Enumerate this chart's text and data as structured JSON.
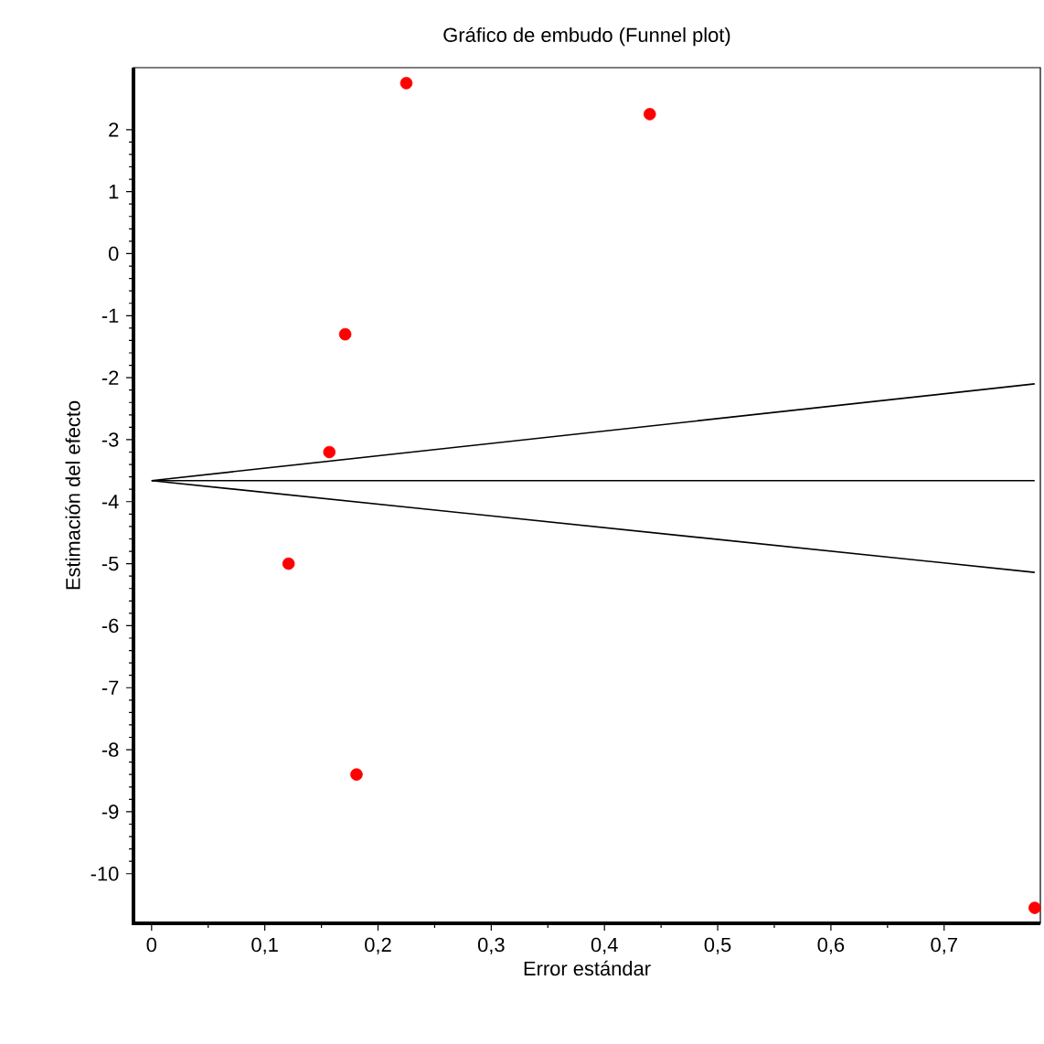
{
  "chart_data": {
    "type": "scatter",
    "title": "Gráfico de embudo (Funnel plot)",
    "xlabel": "Error estándar",
    "ylabel": "Estimación del efecto",
    "xlim": [
      -0.016,
      0.785
    ],
    "ylim": [
      -10.8,
      3.0
    ],
    "xticks": [
      0,
      {
        "value": 0.1,
        "label": "0,1"
      },
      {
        "value": 0.2,
        "label": "0,2"
      },
      {
        "value": 0.3,
        "label": "0,3"
      },
      {
        "value": 0.4,
        "label": "0,4"
      },
      {
        "value": 0.5,
        "label": "0,5"
      },
      {
        "value": 0.6,
        "label": "0,6"
      },
      {
        "value": 0.7,
        "label": "0,7"
      }
    ],
    "yticks": [
      -10,
      -9,
      -8,
      -7,
      -6,
      -5,
      -4,
      -3,
      -2,
      -1,
      0,
      1,
      2
    ],
    "marker": "circle",
    "series": [
      {
        "color": "#ff0000",
        "x": [
          0.225,
          0.44,
          0.171,
          0.157,
          0.121,
          0.181,
          0.78
        ],
        "values": [
          2.75,
          2.25,
          -1.3,
          -3.2,
          -5.0,
          -8.4,
          -10.55
        ]
      },
      {
        "type": "line",
        "marker": "none",
        "color": "#000000",
        "x": [
          0,
          0.78
        ],
        "values": [
          -3.66,
          -2.1
        ]
      },
      {
        "type": "line",
        "marker": "none",
        "color": "#000000",
        "x": [
          0,
          0.78
        ],
        "values": [
          -3.66,
          -3.66
        ]
      },
      {
        "type": "line",
        "marker": "none",
        "color": "#000000",
        "x": [
          0,
          0.78
        ],
        "values": [
          -3.66,
          -5.14
        ]
      }
    ]
  }
}
